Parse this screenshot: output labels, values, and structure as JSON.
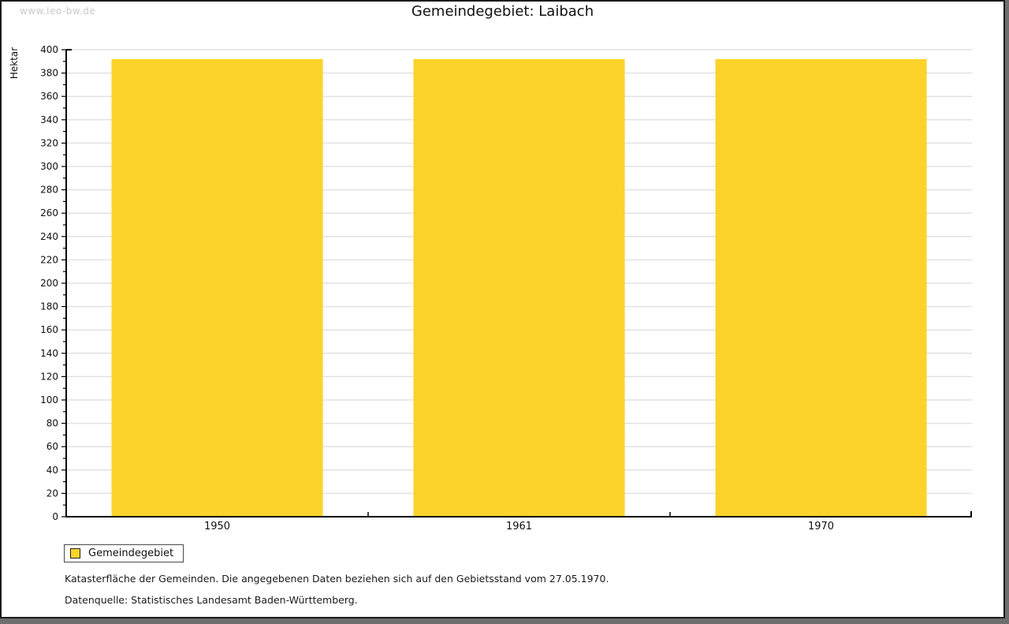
{
  "watermark": "www.leo-bw.de",
  "title": "Gemeindegebiet: Laibach",
  "legend": {
    "label": "Gemeindegebiet"
  },
  "footer": {
    "line1": "Katasterfläche der Gemeinden. Die angegebenen Daten beziehen sich auf den Gebietsstand vom 27.05.1970.",
    "line2": "Datenquelle: Statistisches Landesamt Baden-Württemberg."
  },
  "chart_data": {
    "type": "bar",
    "categories": [
      "1950",
      "1961",
      "1970"
    ],
    "series": [
      {
        "name": "Gemeindegebiet",
        "values": [
          392,
          392,
          392
        ],
        "color": "#fcd32b"
      }
    ],
    "title": "Gemeindegebiet: Laibach",
    "xlabel": "",
    "ylabel": "Hektar",
    "ylim": [
      0,
      400
    ],
    "ytick_major": 20,
    "ytick_minor": 10,
    "grid": true,
    "legend_position": "bottom-left"
  },
  "colors": {
    "bar": "#fcd32b",
    "grid": "#e2e2e2",
    "axis": "#000000",
    "tick_label": "#111111",
    "watermark": "#c9c9c9",
    "frame_shadow": "#6e6e6e"
  }
}
